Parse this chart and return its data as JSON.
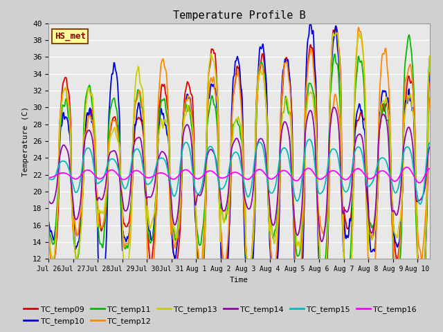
{
  "title": "Temperature Profile B",
  "xlabel": "Time",
  "ylabel": "Temperature (C)",
  "ylim": [
    12,
    40
  ],
  "yticks": [
    12,
    14,
    16,
    18,
    20,
    22,
    24,
    26,
    28,
    30,
    32,
    34,
    36,
    38,
    40
  ],
  "fig_facecolor": "#d0d0d0",
  "plot_bg_color": "#e8e8e8",
  "annotation_text": "HS_met",
  "annotation_bg": "#ffff99",
  "annotation_border": "#8b4513",
  "series_colors": {
    "TC_temp09": "#dd0000",
    "TC_temp10": "#0000dd",
    "TC_temp11": "#00bb00",
    "TC_temp12": "#ff8800",
    "TC_temp13": "#cccc00",
    "TC_temp14": "#9900aa",
    "TC_temp15": "#00bbbb",
    "TC_temp16": "#ff00ff"
  },
  "legend_order": [
    "TC_temp09",
    "TC_temp10",
    "TC_temp11",
    "TC_temp12",
    "TC_temp13",
    "TC_temp14",
    "TC_temp15",
    "TC_temp16"
  ],
  "xtick_labels": [
    "Jul 26",
    "Jul 27",
    "Jul 28",
    "Jul 29",
    "Jul 30",
    "Jul 31",
    "Aug 1",
    "Aug 2",
    "Aug 3",
    "Aug 4",
    "Aug 5",
    "Aug 6",
    "Aug 7",
    "Aug 8",
    "Aug 9",
    "Aug 10"
  ],
  "n_points": 720,
  "start_day": 0,
  "end_day": 15.5
}
